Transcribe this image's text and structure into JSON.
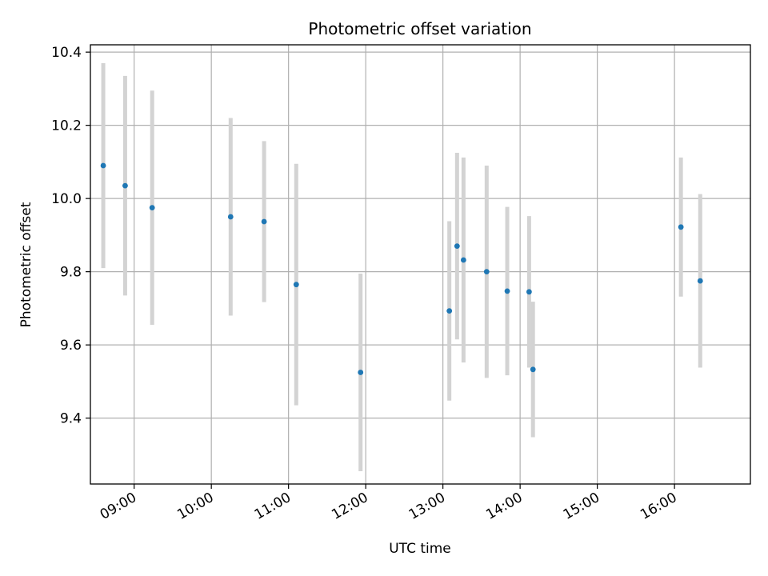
{
  "chart_data": {
    "type": "scatter",
    "title": "Photometric offset variation",
    "xlabel": "UTC time",
    "ylabel": "Photometric offset",
    "x_tick_labels": [
      "09:00",
      "10:00",
      "11:00",
      "12:00",
      "13:00",
      "14:00",
      "15:00",
      "16:00"
    ],
    "y_tick_labels": [
      "9.4",
      "9.6",
      "9.8",
      "10.0",
      "10.2",
      "10.4"
    ],
    "xlim": [
      "08:26",
      "16:59"
    ],
    "ylim": [
      9.22,
      10.42
    ],
    "grid": true,
    "point_color": "#1f77b4",
    "errorbar_color": "#d3d3d3",
    "series": [
      {
        "points": [
          {
            "x": "08:36",
            "y": 10.09,
            "yerr": 0.28
          },
          {
            "x": "08:53",
            "y": 10.035,
            "yerr": 0.3
          },
          {
            "x": "09:14",
            "y": 9.975,
            "yerr": 0.32
          },
          {
            "x": "10:15",
            "y": 9.95,
            "yerr": 0.27
          },
          {
            "x": "10:41",
            "y": 9.937,
            "yerr": 0.22
          },
          {
            "x": "11:06",
            "y": 9.765,
            "yerr": 0.33
          },
          {
            "x": "11:56",
            "y": 9.525,
            "yerr": 0.27
          },
          {
            "x": "13:05",
            "y": 9.693,
            "yerr": 0.245
          },
          {
            "x": "13:11",
            "y": 9.87,
            "yerr": 0.255
          },
          {
            "x": "13:16",
            "y": 9.832,
            "yerr": 0.28
          },
          {
            "x": "13:34",
            "y": 9.8,
            "yerr": 0.29
          },
          {
            "x": "13:50",
            "y": 9.747,
            "yerr": 0.23
          },
          {
            "x": "14:07",
            "y": 9.745,
            "yerr": 0.207
          },
          {
            "x": "14:10",
            "y": 9.533,
            "yerr": 0.185
          },
          {
            "x": "16:05",
            "y": 9.922,
            "yerr": 0.19
          },
          {
            "x": "16:20",
            "y": 9.775,
            "yerr": 0.237
          }
        ]
      }
    ]
  }
}
